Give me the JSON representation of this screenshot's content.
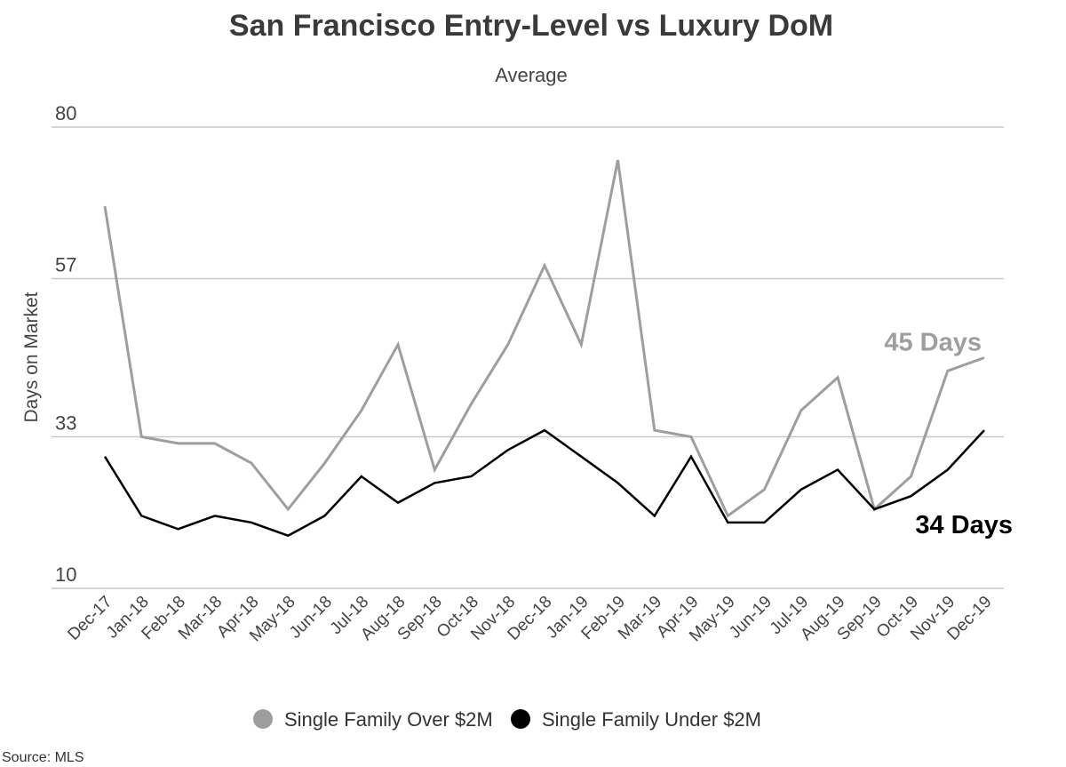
{
  "chart_data": {
    "type": "line",
    "title": "San Francisco Entry-Level vs Luxury DoM",
    "subtitle": "Average",
    "ylabel": "Days on Market",
    "xlabel": "",
    "ylim": [
      10,
      80
    ],
    "yticks": [
      10,
      33,
      57,
      80
    ],
    "grid": true,
    "legend_position": "bottom",
    "categories": [
      "Dec-17",
      "Jan-18",
      "Feb-18",
      "Mar-18",
      "Apr-18",
      "May-18",
      "Jun-18",
      "Jul-18",
      "Aug-18",
      "Sep-18",
      "Oct-18",
      "Nov-18",
      "Dec-18",
      "Jan-19",
      "Feb-19",
      "Mar-19",
      "Apr-19",
      "May-19",
      "Jun-19",
      "Jul-19",
      "Aug-19",
      "Sep-19",
      "Oct-19",
      "Nov-19",
      "Dec-19"
    ],
    "series": [
      {
        "name": "Single Family Over $2M",
        "color": "#9e9e9e",
        "values": [
          68,
          33,
          32,
          32,
          29,
          22,
          29,
          37,
          47,
          28,
          38,
          47,
          59,
          47,
          75,
          34,
          33,
          21,
          25,
          37,
          42,
          22,
          27,
          43,
          45
        ],
        "end_label": "45 Days"
      },
      {
        "name": "Single Family Under $2M",
        "color": "#000000",
        "values": [
          30,
          21,
          19,
          21,
          20,
          18,
          21,
          27,
          23,
          26,
          27,
          31,
          34,
          30,
          26,
          21,
          30,
          20,
          20,
          25,
          28,
          22,
          24,
          28,
          34
        ],
        "end_label": "34 Days"
      }
    ]
  },
  "source": "Source:  MLS"
}
